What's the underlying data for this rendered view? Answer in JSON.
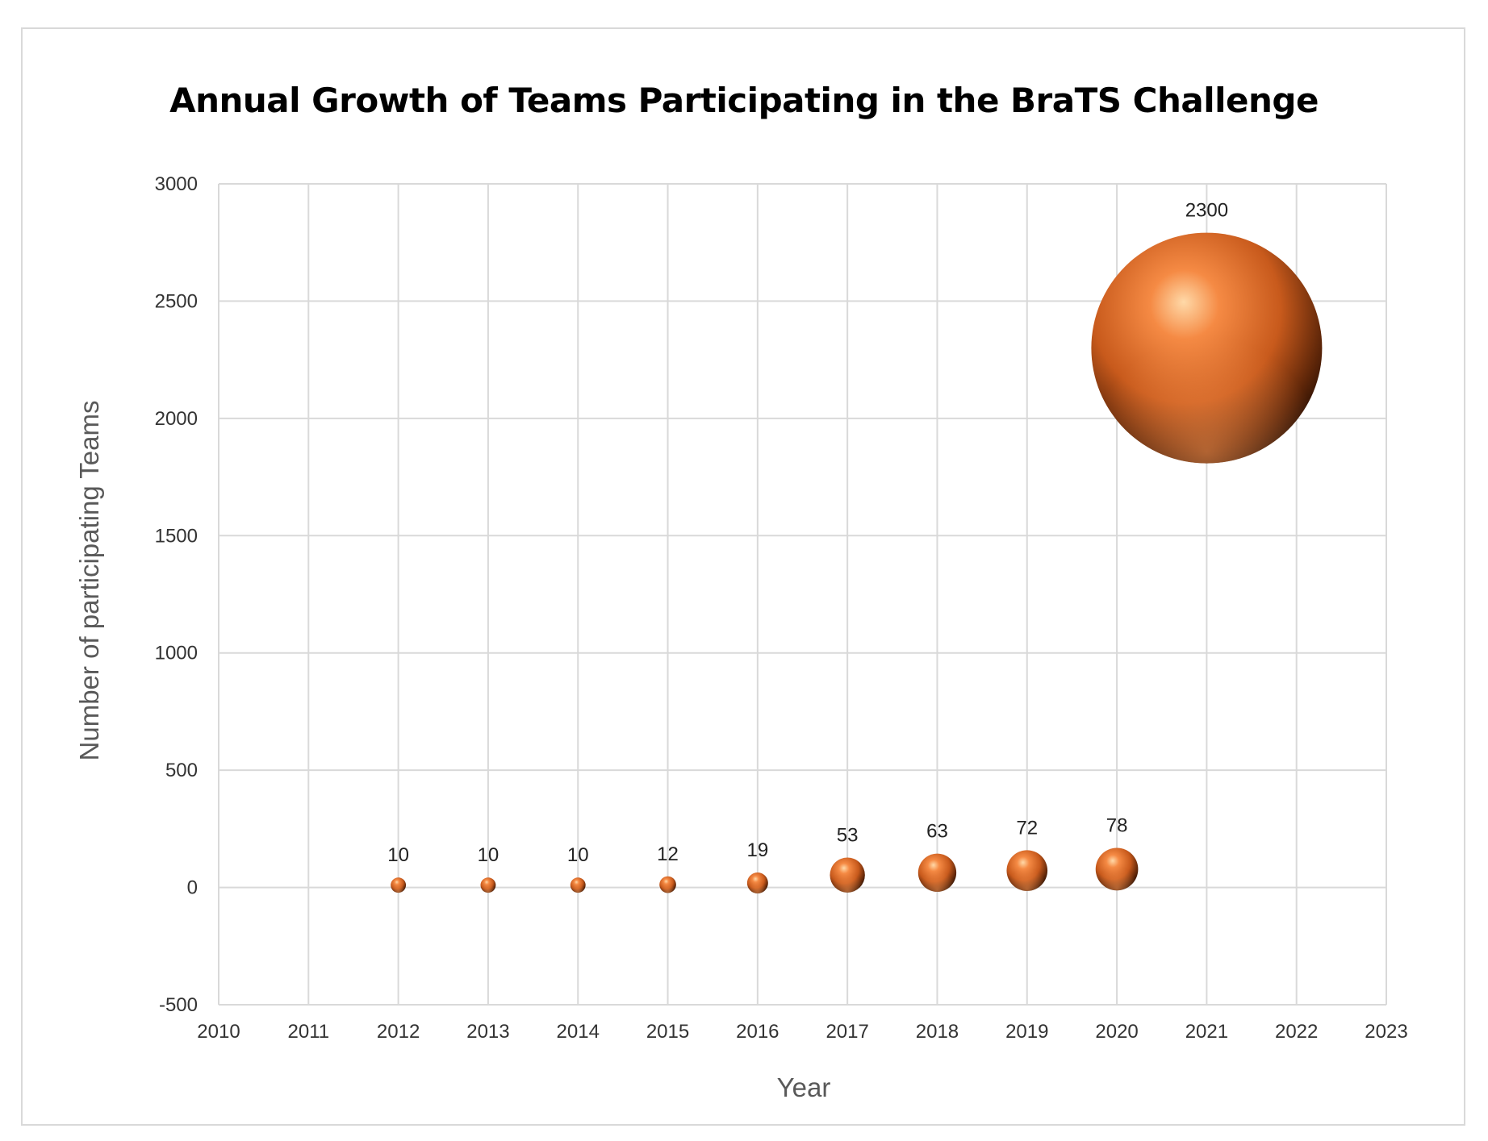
{
  "chart_data": {
    "type": "bubble",
    "title": "Annual Growth of Teams Participating in the BraTS Challenge",
    "xlabel": "Year",
    "ylabel": "Number of participating Teams",
    "xlim": [
      2010,
      2023
    ],
    "ylim": [
      -500,
      3000
    ],
    "xticks": [
      2010,
      2011,
      2012,
      2013,
      2014,
      2015,
      2016,
      2017,
      2018,
      2019,
      2020,
      2021,
      2022,
      2023
    ],
    "yticks": [
      -500,
      0,
      500,
      1000,
      1500,
      2000,
      2500,
      3000
    ],
    "grid": true,
    "legend": "none",
    "bubble_color": "#e8742e",
    "points": [
      {
        "x": 2012,
        "y": 10,
        "size": 10,
        "label": "10"
      },
      {
        "x": 2013,
        "y": 10,
        "size": 10,
        "label": "10"
      },
      {
        "x": 2014,
        "y": 10,
        "size": 10,
        "label": "10"
      },
      {
        "x": 2015,
        "y": 12,
        "size": 12,
        "label": "12"
      },
      {
        "x": 2016,
        "y": 19,
        "size": 19,
        "label": "19"
      },
      {
        "x": 2017,
        "y": 53,
        "size": 53,
        "label": "53"
      },
      {
        "x": 2018,
        "y": 63,
        "size": 63,
        "label": "63"
      },
      {
        "x": 2019,
        "y": 72,
        "size": 72,
        "label": "72"
      },
      {
        "x": 2020,
        "y": 78,
        "size": 78,
        "label": "78"
      },
      {
        "x": 2021,
        "y": 2300,
        "size": 2300,
        "label": "2300"
      }
    ]
  }
}
